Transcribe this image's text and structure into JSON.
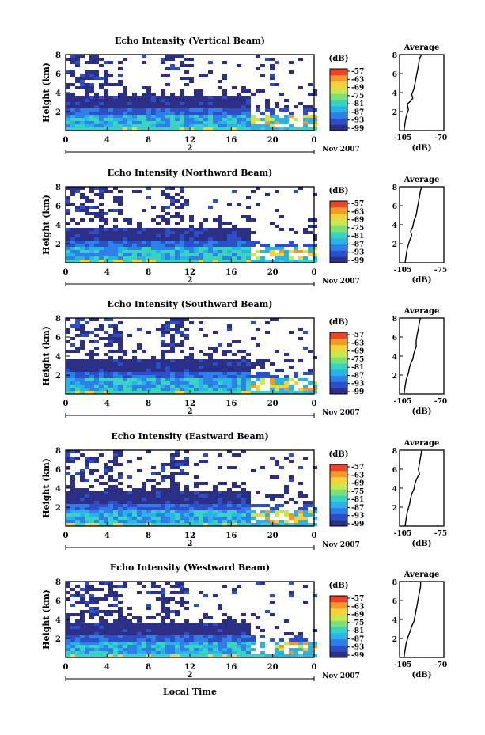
{
  "chart_data": {
    "type": "heatmap",
    "panels": [
      {
        "title": "Echo Intensity (Vertical Beam)",
        "profile": [
          [
            -106,
            0
          ],
          [
            -105,
            0.8
          ],
          [
            -104,
            1.5
          ],
          [
            -102,
            2.2
          ],
          [
            -103,
            2.8
          ],
          [
            -100,
            3.1
          ],
          [
            -98,
            3.4
          ],
          [
            -99,
            3.8
          ],
          [
            -97,
            4.4
          ],
          [
            -96,
            5.0
          ],
          [
            -95,
            5.6
          ],
          [
            -94,
            6.2
          ],
          [
            -93,
            6.8
          ],
          [
            -92,
            7.6
          ],
          [
            -90,
            8.0
          ]
        ],
        "profile_xlabels": [
          "-105",
          "-70"
        ]
      },
      {
        "title": "Echo Intensity (Northward Beam)",
        "profile": [
          [
            -105,
            0
          ],
          [
            -104,
            0.8
          ],
          [
            -103,
            1.5
          ],
          [
            -101,
            2.3
          ],
          [
            -99,
            2.9
          ],
          [
            -100,
            3.3
          ],
          [
            -98,
            3.8
          ],
          [
            -97,
            4.4
          ],
          [
            -95,
            5.0
          ],
          [
            -94,
            5.7
          ],
          [
            -93,
            6.3
          ],
          [
            -92,
            7.0
          ],
          [
            -91,
            7.6
          ],
          [
            -90,
            8.0
          ]
        ],
        "profile_xlabels": [
          "-105",
          "-75"
        ]
      },
      {
        "title": "Echo Intensity (Southward Beam)",
        "profile": [
          [
            -106,
            0
          ],
          [
            -105,
            0.8
          ],
          [
            -104,
            1.5
          ],
          [
            -102,
            2.2
          ],
          [
            -101,
            2.8
          ],
          [
            -100,
            3.2
          ],
          [
            -98,
            3.7
          ],
          [
            -97,
            4.3
          ],
          [
            -95,
            5.0
          ],
          [
            -95,
            5.6
          ],
          [
            -94,
            6.3
          ],
          [
            -93,
            6.9
          ],
          [
            -92,
            7.6
          ],
          [
            -91,
            8.0
          ]
        ],
        "profile_xlabels": [
          "-105",
          "-70"
        ]
      },
      {
        "title": "Echo Intensity (Eastward Beam)",
        "profile": [
          [
            -105,
            0
          ],
          [
            -104,
            0.8
          ],
          [
            -103,
            1.5
          ],
          [
            -101,
            2.3
          ],
          [
            -100,
            2.9
          ],
          [
            -99,
            3.4
          ],
          [
            -97,
            3.9
          ],
          [
            -96,
            4.5
          ],
          [
            -94,
            5.1
          ],
          [
            -92,
            5.5
          ],
          [
            -93,
            6.0
          ],
          [
            -92,
            6.6
          ],
          [
            -91,
            7.3
          ],
          [
            -90,
            8.0
          ]
        ],
        "profile_xlabels": [
          "-105",
          "-75"
        ]
      },
      {
        "title": "Echo Intensity (Westward Beam)",
        "profile": [
          [
            -106,
            0
          ],
          [
            -105,
            0.8
          ],
          [
            -104,
            1.5
          ],
          [
            -102,
            2.3
          ],
          [
            -100,
            2.9
          ],
          [
            -99,
            3.3
          ],
          [
            -97,
            3.8
          ],
          [
            -96,
            4.4
          ],
          [
            -95,
            5.0
          ],
          [
            -94,
            5.6
          ],
          [
            -93,
            6.3
          ],
          [
            -92,
            6.9
          ],
          [
            -91,
            7.5
          ],
          [
            -91,
            8.0
          ]
        ],
        "profile_xlabels": [
          "-105",
          "-70"
        ]
      }
    ],
    "x_ticks": [
      "0",
      "4",
      "8",
      "12",
      "16",
      "20",
      "0"
    ],
    "x_range": [
      0,
      24
    ],
    "date_label": "2",
    "month_label": "Nov 2007",
    "y_label": "Height (km)",
    "y_ticks": [
      "2",
      "4",
      "6",
      "8"
    ],
    "y_range": [
      0,
      8
    ],
    "colorbar_unit": "(dB)",
    "colorbar_ticks": [
      "-57",
      "-63",
      "-69",
      "-75",
      "-81",
      "-87",
      "-93",
      "-99"
    ],
    "colorbar_colors": [
      "#2b2f86",
      "#2c4fc8",
      "#2f7fe8",
      "#29b3e8",
      "#39d3c2",
      "#7be07a",
      "#c9e84d",
      "#f5d23a",
      "#f59a2a",
      "#e8452a"
    ],
    "profile_title": "Average",
    "profile_unit": "(dB)",
    "profile_range": [
      -110,
      -70
    ],
    "profile_yticks": [
      "2",
      "4",
      "6",
      "8"
    ],
    "x_axis_label": "Local Time"
  }
}
